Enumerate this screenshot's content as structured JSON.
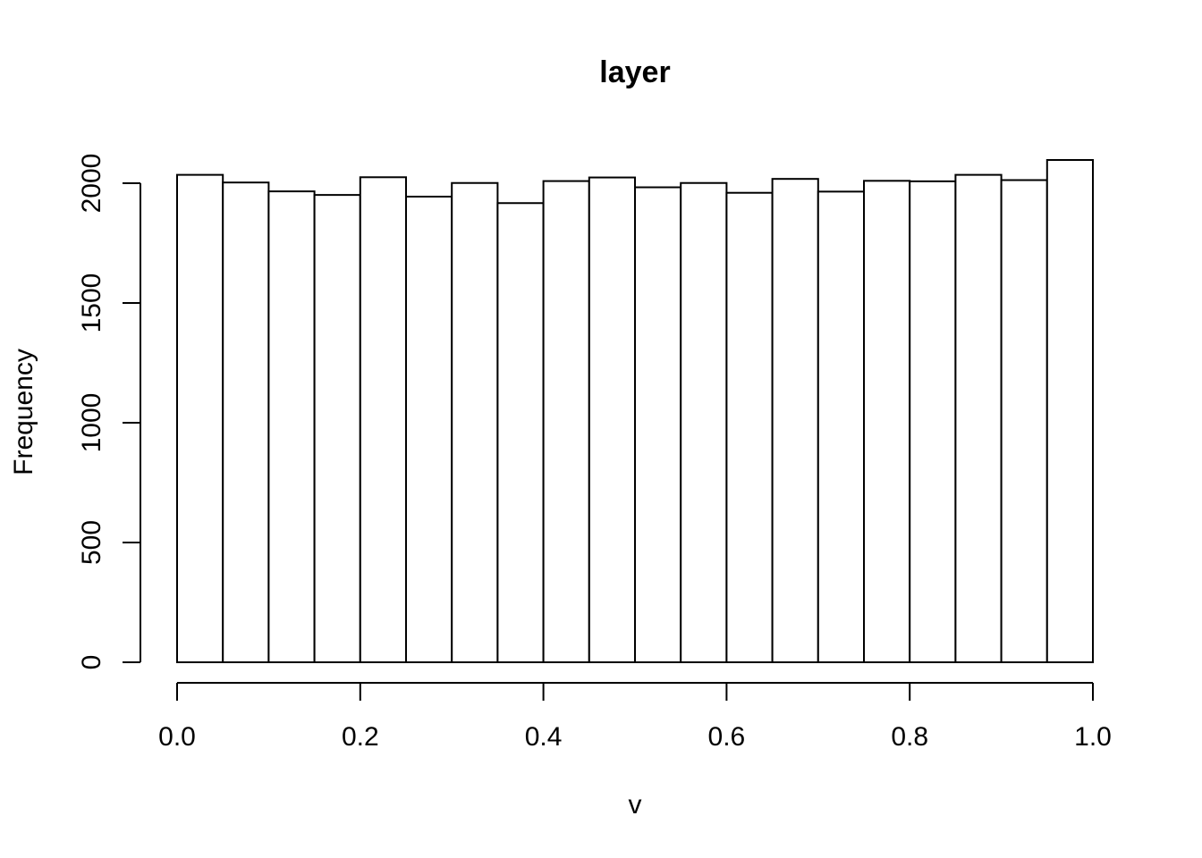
{
  "chart_data": {
    "type": "bar",
    "title": "layer",
    "xlabel": "v",
    "ylabel": "Frequency",
    "xlim": [
      0,
      1
    ],
    "ylim": [
      0,
      2100
    ],
    "bin_width": 0.05,
    "bins": [
      0.0,
      0.05,
      0.1,
      0.15,
      0.2,
      0.25,
      0.3,
      0.35,
      0.4,
      0.45,
      0.5,
      0.55,
      0.6,
      0.65,
      0.7,
      0.75,
      0.8,
      0.85,
      0.9,
      0.95
    ],
    "values": [
      2035,
      2003,
      1966,
      1951,
      2025,
      1944,
      2001,
      1917,
      2009,
      2024,
      1983,
      2001,
      1960,
      2018,
      1965,
      2010,
      2008,
      2035,
      2013,
      2097
    ],
    "x_ticks": [
      "0.0",
      "0.2",
      "0.4",
      "0.6",
      "0.8",
      "1.0"
    ],
    "y_ticks": [
      "0",
      "500",
      "1000",
      "1500",
      "2000"
    ],
    "grid": false
  }
}
